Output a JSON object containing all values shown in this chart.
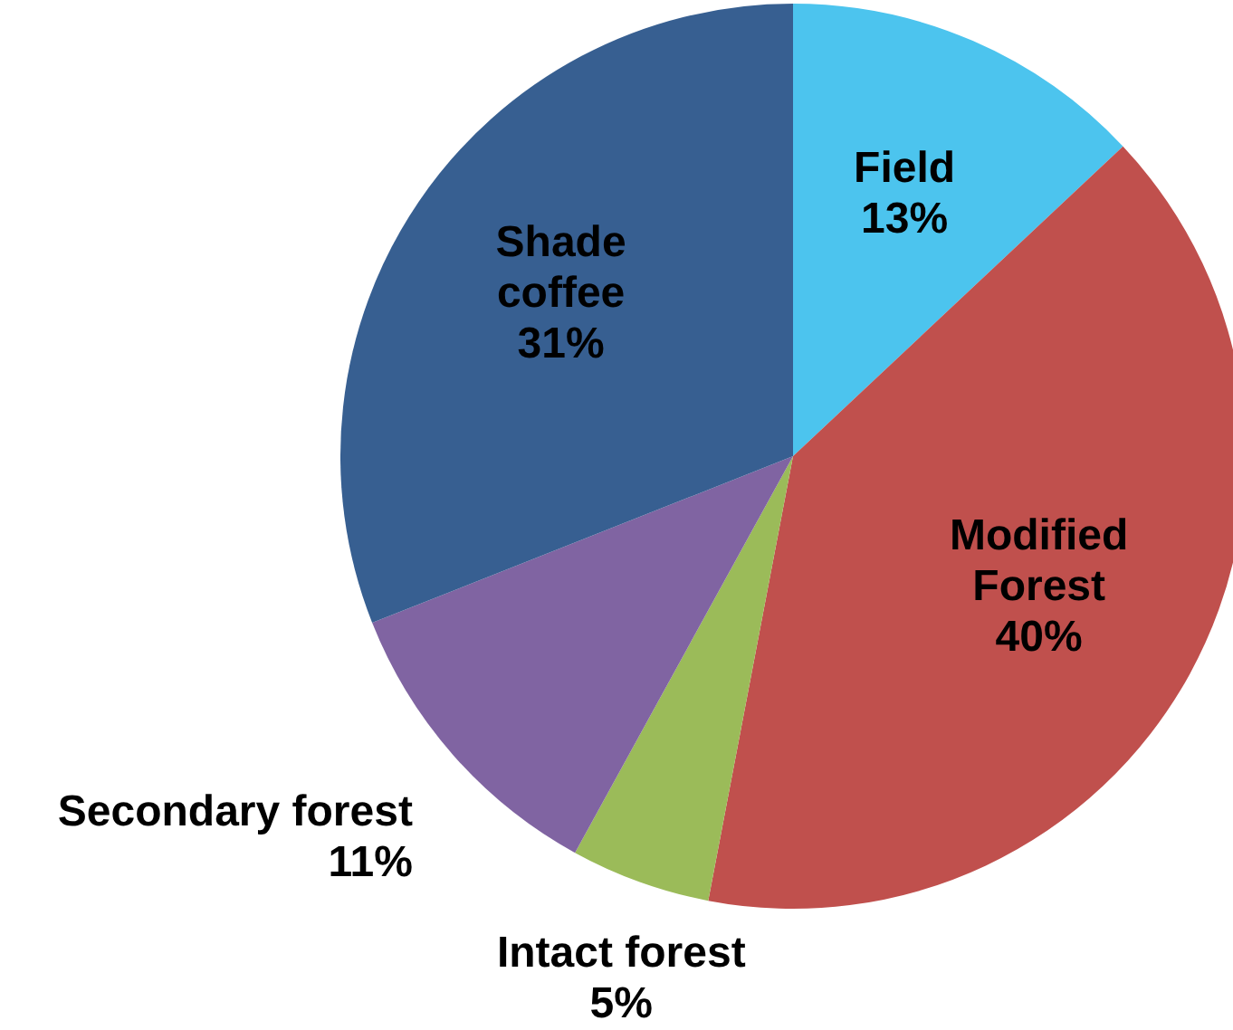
{
  "chart_data": {
    "type": "pie",
    "categories": [
      "Field",
      "Modified Forest",
      "Intact forest",
      "Secondary forest",
      "Shade coffee"
    ],
    "values": [
      13,
      40,
      5,
      11,
      31
    ],
    "value_labels": [
      "13%",
      "40%",
      "5%",
      "11%",
      "31%"
    ],
    "colors": [
      "#4cc4ee",
      "#c0504d",
      "#9bbb59",
      "#8064a2",
      "#375f91"
    ],
    "legend": false
  }
}
